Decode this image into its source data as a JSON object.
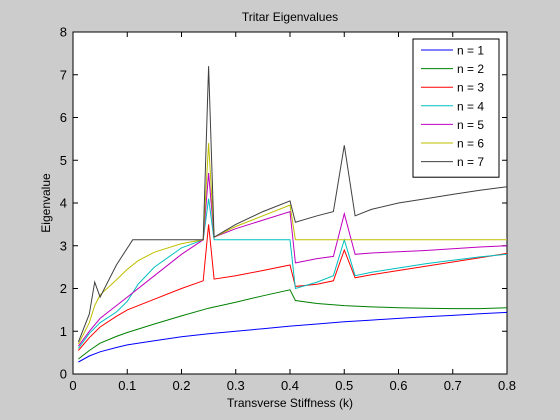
{
  "chart_data": {
    "type": "line",
    "title": "Tritar Eigenvalues",
    "xlabel": "Transverse Stiffness (k)",
    "ylabel": "Eigenvalue",
    "xlim": [
      0,
      0.8
    ],
    "ylim": [
      0,
      8
    ],
    "xticks": [
      "0",
      "0.1",
      "0.2",
      "0.3",
      "0.4",
      "0.5",
      "0.6",
      "0.7",
      "0.8"
    ],
    "yticks": [
      "0",
      "1",
      "2",
      "3",
      "4",
      "5",
      "6",
      "7",
      "8"
    ],
    "grid": false,
    "legend_position": "top-right",
    "series": [
      {
        "name": "n = 1",
        "color": "#0000ff",
        "x": [
          0.01,
          0.03,
          0.05,
          0.08,
          0.1,
          0.15,
          0.2,
          0.25,
          0.3,
          0.35,
          0.4,
          0.45,
          0.5,
          0.55,
          0.6,
          0.65,
          0.7,
          0.75,
          0.8
        ],
        "y": [
          0.28,
          0.42,
          0.52,
          0.62,
          0.68,
          0.78,
          0.87,
          0.94,
          1.0,
          1.06,
          1.12,
          1.17,
          1.22,
          1.26,
          1.3,
          1.34,
          1.37,
          1.41,
          1.44
        ]
      },
      {
        "name": "n = 2",
        "color": "#008000",
        "x": [
          0.01,
          0.03,
          0.05,
          0.08,
          0.1,
          0.15,
          0.2,
          0.25,
          0.3,
          0.35,
          0.4,
          0.41,
          0.45,
          0.5,
          0.55,
          0.6,
          0.65,
          0.7,
          0.75,
          0.8
        ],
        "y": [
          0.35,
          0.55,
          0.72,
          0.88,
          0.97,
          1.17,
          1.36,
          1.54,
          1.68,
          1.83,
          1.97,
          1.72,
          1.65,
          1.6,
          1.57,
          1.55,
          1.54,
          1.53,
          1.53,
          1.55
        ]
      },
      {
        "name": "n = 3",
        "color": "#ff0000",
        "x": [
          0.01,
          0.03,
          0.05,
          0.08,
          0.1,
          0.15,
          0.2,
          0.24,
          0.25,
          0.26,
          0.3,
          0.35,
          0.4,
          0.41,
          0.45,
          0.48,
          0.5,
          0.52,
          0.55,
          0.6,
          0.65,
          0.7,
          0.75,
          0.8
        ],
        "y": [
          0.55,
          0.85,
          1.1,
          1.35,
          1.5,
          1.75,
          2.0,
          2.18,
          3.5,
          2.22,
          2.3,
          2.42,
          2.55,
          2.05,
          2.1,
          2.18,
          2.9,
          2.25,
          2.32,
          2.42,
          2.52,
          2.62,
          2.72,
          2.82
        ]
      },
      {
        "name": "n = 4",
        "color": "#00bfbf",
        "x": [
          0.01,
          0.03,
          0.05,
          0.08,
          0.1,
          0.12,
          0.15,
          0.2,
          0.24,
          0.25,
          0.26,
          0.3,
          0.35,
          0.4,
          0.41,
          0.45,
          0.48,
          0.5,
          0.52,
          0.55,
          0.6,
          0.65,
          0.7,
          0.75,
          0.8
        ],
        "y": [
          0.6,
          0.95,
          1.2,
          1.45,
          1.7,
          2.1,
          2.5,
          2.95,
          3.14,
          4.1,
          3.14,
          3.14,
          3.14,
          3.14,
          2.0,
          2.15,
          2.3,
          3.14,
          2.3,
          2.38,
          2.48,
          2.58,
          2.66,
          2.74,
          2.8
        ]
      },
      {
        "name": "n = 5",
        "color": "#bf00bf",
        "x": [
          0.01,
          0.03,
          0.05,
          0.08,
          0.1,
          0.15,
          0.2,
          0.24,
          0.25,
          0.26,
          0.3,
          0.35,
          0.4,
          0.41,
          0.45,
          0.48,
          0.5,
          0.52,
          0.55,
          0.6,
          0.65,
          0.7,
          0.75,
          0.8
        ],
        "y": [
          0.65,
          1.0,
          1.3,
          1.6,
          1.8,
          2.3,
          2.8,
          3.14,
          4.7,
          3.2,
          3.4,
          3.6,
          3.8,
          2.6,
          2.7,
          2.75,
          3.75,
          2.8,
          2.83,
          2.86,
          2.89,
          2.93,
          2.97,
          3.0
        ]
      },
      {
        "name": "n = 6",
        "color": "#bfbf00",
        "x": [
          0.01,
          0.03,
          0.04,
          0.05,
          0.08,
          0.1,
          0.12,
          0.15,
          0.2,
          0.24,
          0.25,
          0.26,
          0.3,
          0.35,
          0.4,
          0.41,
          0.45,
          0.5,
          0.52,
          0.55,
          0.6,
          0.7,
          0.8
        ],
        "y": [
          0.7,
          1.2,
          1.6,
          1.85,
          2.2,
          2.45,
          2.65,
          2.85,
          3.05,
          3.14,
          5.4,
          3.2,
          3.45,
          3.7,
          3.95,
          3.14,
          3.14,
          3.14,
          3.14,
          3.14,
          3.14,
          3.14,
          3.14
        ]
      },
      {
        "name": "n = 7",
        "color": "#404040",
        "x": [
          0.01,
          0.03,
          0.04,
          0.05,
          0.08,
          0.11,
          0.15,
          0.2,
          0.24,
          0.25,
          0.26,
          0.3,
          0.35,
          0.4,
          0.41,
          0.45,
          0.48,
          0.5,
          0.52,
          0.55,
          0.6,
          0.65,
          0.7,
          0.75,
          0.8
        ],
        "y": [
          0.75,
          1.4,
          2.15,
          1.8,
          2.55,
          3.14,
          3.14,
          3.14,
          3.14,
          7.2,
          3.2,
          3.5,
          3.8,
          4.05,
          3.55,
          3.7,
          3.8,
          5.35,
          3.7,
          3.85,
          4.0,
          4.1,
          4.2,
          4.3,
          4.38
        ]
      }
    ]
  }
}
